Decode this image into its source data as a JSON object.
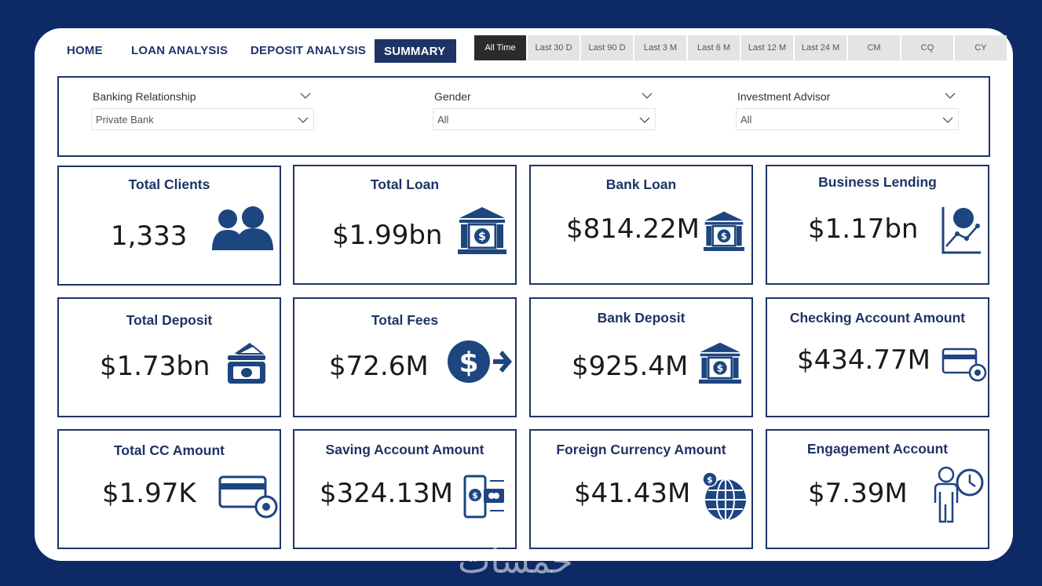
{
  "nav": {
    "home": "HOME",
    "loan_analysis": "LOAN ANALYSIS",
    "deposit_analysis": "DEPOSIT ANALYSIS",
    "summary": "SUMMARY"
  },
  "time_filters": [
    "All Time",
    "Last 30 D",
    "Last 90 D",
    "Last 3 M",
    "Last 6 M",
    "Last 12 M",
    "Last 24 M",
    "CM",
    "CQ",
    "CY"
  ],
  "filters": {
    "banking_relationship": {
      "label": "Banking Relationship",
      "value": "Private Bank"
    },
    "gender": {
      "label": "Gender",
      "value": "All"
    },
    "investment_advisor": {
      "label": "Investment Advisor",
      "value": "All"
    }
  },
  "cards": {
    "total_clients": {
      "title": "Total Clients",
      "value": "1,333",
      "icon": "users-icon"
    },
    "total_loan": {
      "title": "Total Loan",
      "value": "$1.99bn",
      "icon": "bank-icon"
    },
    "bank_loan": {
      "title": "Bank Loan",
      "value": "$814.22M",
      "icon": "bank-icon"
    },
    "business_lending": {
      "title": "Business Lending",
      "value": "$1.17bn",
      "icon": "growth-chart-icon"
    },
    "total_deposit": {
      "title": "Total Deposit",
      "value": "$1.73bn",
      "icon": "cash-deposit-icon"
    },
    "total_fees": {
      "title": "Total Fees",
      "value": "$72.6M",
      "icon": "dollar-transfer-icon"
    },
    "bank_deposit": {
      "title": "Bank Deposit",
      "value": "$925.4M",
      "icon": "bank-icon"
    },
    "checking_account_amount": {
      "title": "Checking Account Amount",
      "value": "$434.77M",
      "icon": "card-settings-icon"
    },
    "total_cc_amount": {
      "title": "Total CC Amount",
      "value": "$1.97K",
      "icon": "card-settings-icon"
    },
    "saving_account_amount": {
      "title": "Saving Account Amount",
      "value": "$324.13M",
      "icon": "mobile-payment-icon"
    },
    "foreign_currency_amount": {
      "title": "Foreign Currency Amount",
      "value": "$41.43M",
      "icon": "globe-dollar-icon"
    },
    "engagement_account": {
      "title": "Engagement Account",
      "value": "$7.39M",
      "icon": "person-clock-icon"
    }
  },
  "colors": {
    "background": "#0d2a66",
    "accent": "#1e3466",
    "icon": "#1d4580"
  },
  "watermark": "خمسات"
}
